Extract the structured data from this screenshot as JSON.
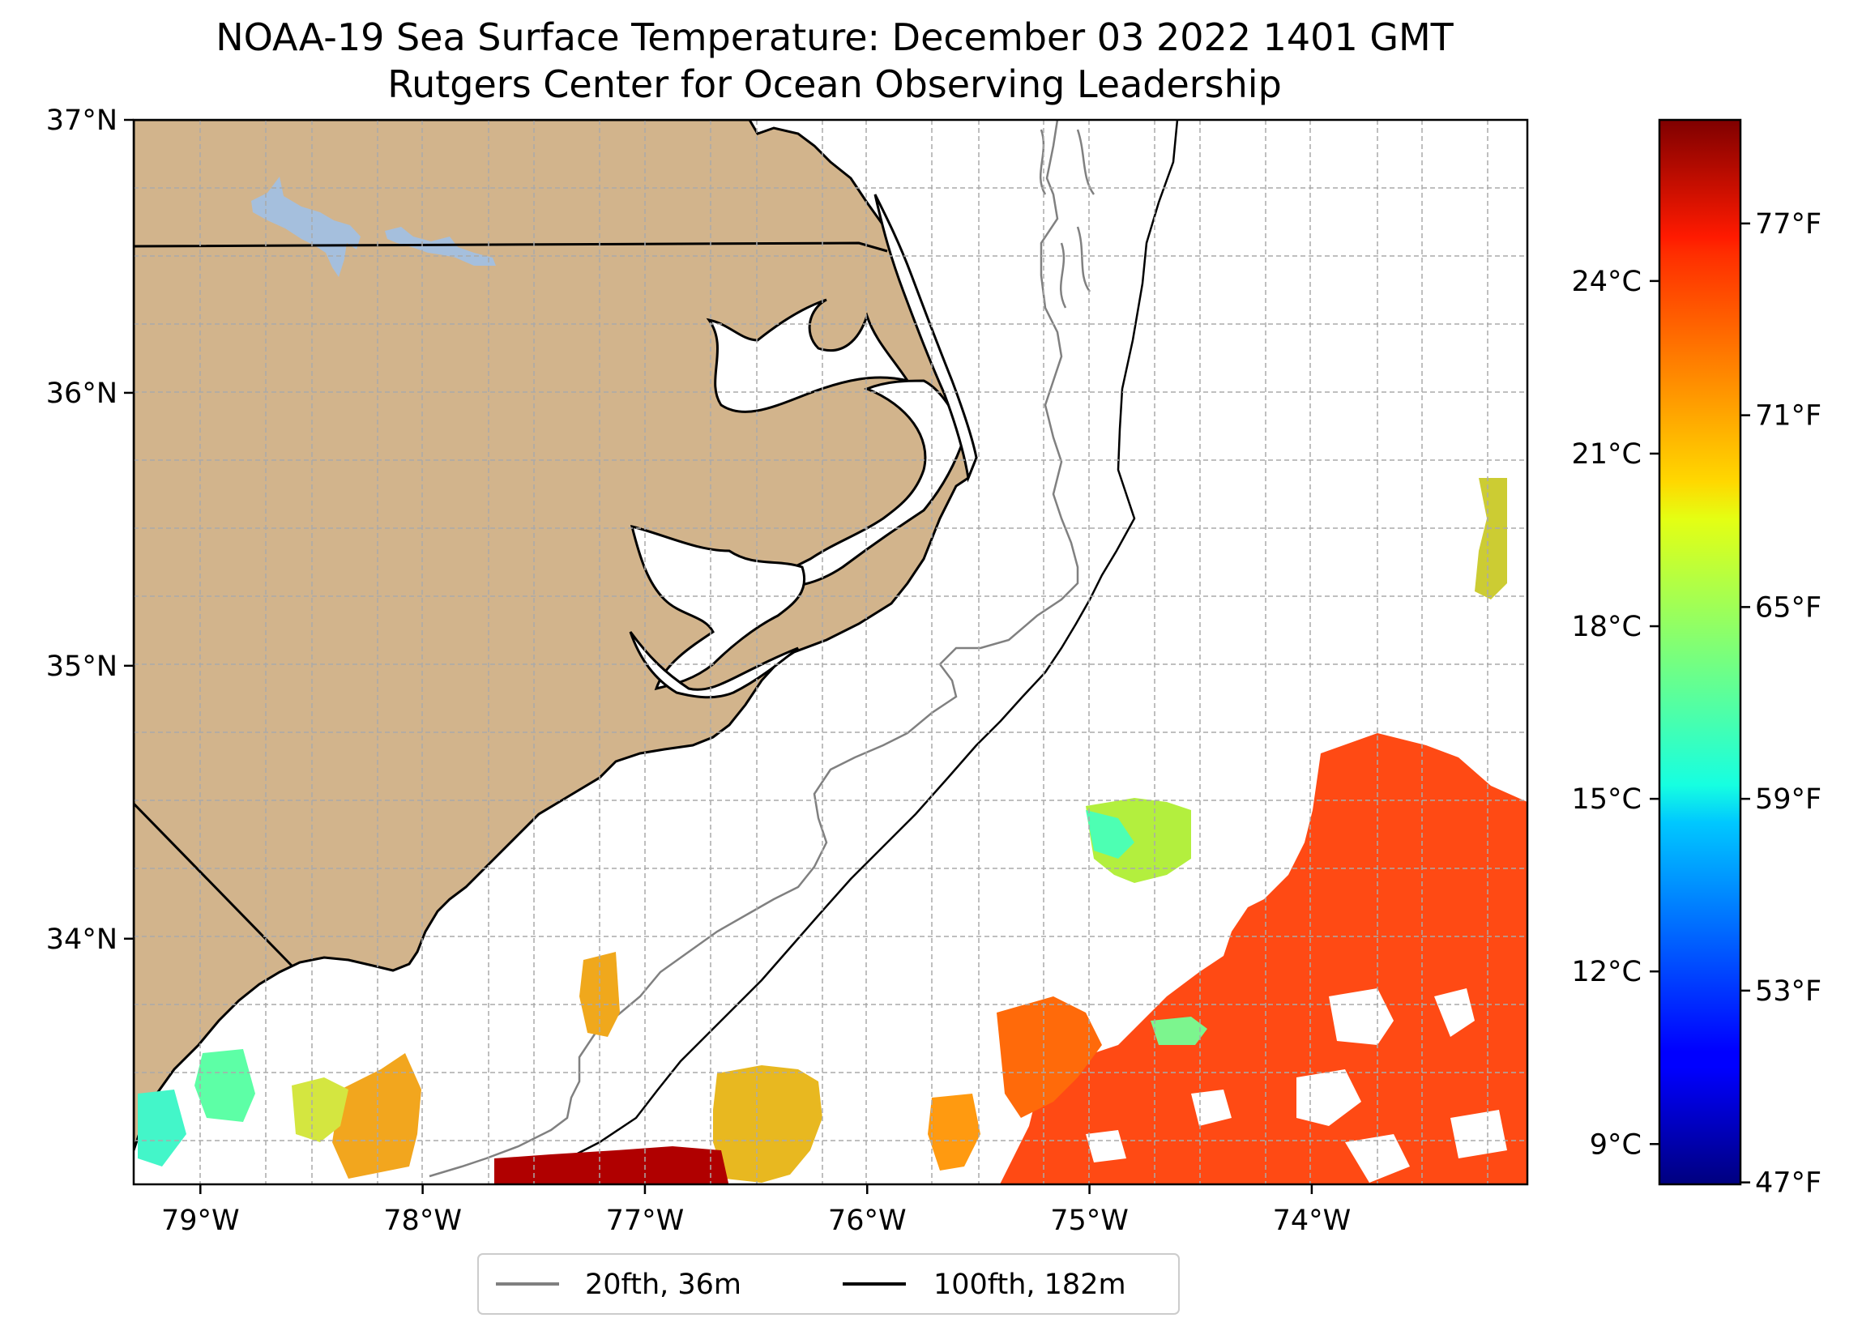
{
  "title": {
    "line1": "NOAA-19 Sea Surface Temperature: December 03 2022 1401 GMT",
    "line2": "Rutgers Center for Ocean Observing Leadership"
  },
  "map": {
    "lon_range": [
      -79.3,
      -73.03
    ],
    "lat_range": [
      33.1,
      37.0
    ],
    "lon_ticks": [
      {
        "value": -79,
        "label": "79°W"
      },
      {
        "value": -78,
        "label": "78°W"
      },
      {
        "value": -77,
        "label": "77°W"
      },
      {
        "value": -76,
        "label": "76°W"
      },
      {
        "value": -75,
        "label": "75°W"
      },
      {
        "value": -74,
        "label": "74°W"
      }
    ],
    "lat_ticks": [
      {
        "value": 37,
        "label": "37°N"
      },
      {
        "value": 36,
        "label": "36°N"
      },
      {
        "value": 35,
        "label": "35°N"
      },
      {
        "value": 34,
        "label": "34°N"
      }
    ],
    "gridlines": true,
    "land_color": "#d2b48c",
    "lake_color": "#a5bfdd",
    "legend": {
      "placement": "below",
      "entries": [
        {
          "label": "20fth, 36m",
          "color": "#808080"
        },
        {
          "label": "100fth, 182m",
          "color": "#000000"
        }
      ]
    }
  },
  "colorbar": {
    "colormap": "jet",
    "range_celsius": [
      8.3,
      26.8
    ],
    "celsius_ticks": [
      {
        "value": 9,
        "label": "9°C"
      },
      {
        "value": 12,
        "label": "12°C"
      },
      {
        "value": 15,
        "label": "15°C"
      },
      {
        "value": 18,
        "label": "18°C"
      },
      {
        "value": 21,
        "label": "21°C"
      },
      {
        "value": 24,
        "label": "24°C"
      }
    ],
    "fahrenheit_ticks": [
      {
        "value": 47,
        "label": "47°F"
      },
      {
        "value": 53,
        "label": "53°F"
      },
      {
        "value": 59,
        "label": "59°F"
      },
      {
        "value": 65,
        "label": "65°F"
      },
      {
        "value": 71,
        "label": "71°F"
      },
      {
        "value": 77,
        "label": "77°F"
      }
    ]
  }
}
